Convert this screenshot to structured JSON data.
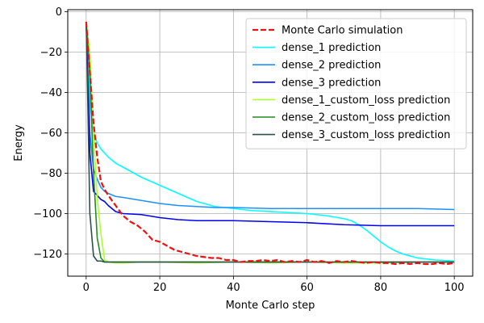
{
  "chart_data": {
    "type": "line",
    "title": "",
    "xlabel": "Monte Carlo step",
    "ylabel": "Energy",
    "xlim": [
      -5,
      105
    ],
    "ylim": [
      -131,
      1
    ],
    "xticks": [
      0,
      20,
      40,
      60,
      80,
      100
    ],
    "yticks": [
      0,
      -20,
      -40,
      -60,
      -80,
      -100,
      -120
    ],
    "grid": true,
    "legend_position": "top-right",
    "series": [
      {
        "name": "Monte Carlo simulation",
        "color": "#ee1111",
        "style": "dashed",
        "x": [
          0,
          1,
          2,
          3,
          4,
          5,
          6,
          8,
          10,
          12,
          14,
          16,
          18,
          20,
          22,
          24,
          26,
          28,
          30,
          32,
          34,
          36,
          38,
          40,
          42,
          44,
          46,
          48,
          50,
          52,
          54,
          56,
          58,
          60,
          62,
          64,
          66,
          68,
          70,
          72,
          74,
          76,
          78,
          80,
          82,
          84,
          86,
          88,
          90,
          92,
          94,
          96,
          98,
          100
        ],
        "y": [
          -5,
          -30,
          -55,
          -72,
          -84,
          -88,
          -91,
          -96,
          -101,
          -104,
          -106,
          -109,
          -113,
          -114,
          -116,
          -118,
          -119,
          -120,
          -121,
          -121.5,
          -122,
          -122,
          -123,
          -123,
          -124,
          -123.5,
          -123.5,
          -123,
          -123.5,
          -123,
          -124,
          -123.5,
          -124,
          -123,
          -124,
          -123.5,
          -124.5,
          -123.5,
          -124,
          -123.5,
          -124,
          -124.5,
          -124,
          -124.5,
          -124.5,
          -125,
          -124.5,
          -125,
          -124.5,
          -125,
          -125,
          -124.5,
          -125,
          -124.5
        ]
      },
      {
        "name": "dense_1 prediction",
        "color": "#00ffff",
        "style": "solid",
        "x": [
          0,
          1,
          2,
          3,
          4,
          6,
          8,
          10,
          15,
          20,
          25,
          30,
          35,
          40,
          45,
          50,
          55,
          60,
          65,
          70,
          72,
          74,
          76,
          78,
          80,
          82,
          84,
          86,
          88,
          90,
          95,
          100
        ],
        "y": [
          -5,
          -45,
          -60,
          -65,
          -68,
          -72,
          -75,
          -77,
          -82,
          -86,
          -90,
          -94,
          -96.5,
          -97.5,
          -98.5,
          -99,
          -99.5,
          -100,
          -101,
          -102.5,
          -103.5,
          -105.5,
          -108,
          -111,
          -114,
          -116.5,
          -118.5,
          -120,
          -121,
          -122,
          -123,
          -123.5
        ]
      },
      {
        "name": "dense_2 prediction",
        "color": "#1e90ff",
        "style": "solid",
        "x": [
          0,
          1,
          2,
          3,
          4,
          5,
          6,
          8,
          10,
          15,
          20,
          25,
          30,
          35,
          40,
          50,
          60,
          70,
          80,
          90,
          100
        ],
        "y": [
          -5,
          -60,
          -78,
          -83,
          -87,
          -89,
          -90,
          -91.5,
          -92,
          -93.5,
          -95,
          -96,
          -96.5,
          -97,
          -97,
          -97.5,
          -97.5,
          -97.5,
          -97.5,
          -97.5,
          -98
        ]
      },
      {
        "name": "dense_3 prediction",
        "color": "#0000ee",
        "style": "solid",
        "x": [
          0,
          1,
          2,
          3,
          4,
          5,
          6,
          8,
          10,
          15,
          20,
          25,
          30,
          35,
          40,
          50,
          60,
          70,
          80,
          90,
          100
        ],
        "y": [
          -5,
          -70,
          -89,
          -91,
          -93,
          -94,
          -96,
          -99,
          -100,
          -100.5,
          -102,
          -103,
          -103.5,
          -103.5,
          -103.5,
          -104,
          -104.5,
          -105.5,
          -106,
          -106,
          -106
        ]
      },
      {
        "name": "dense_1_custom_loss prediction",
        "color": "#adff2f",
        "style": "solid",
        "x": [
          0,
          1,
          2,
          3,
          4,
          5,
          6,
          8,
          10,
          15,
          20,
          30,
          40,
          50,
          60,
          70,
          80,
          90,
          100
        ],
        "y": [
          -5,
          -20,
          -60,
          -92,
          -110,
          -123,
          -124,
          -124.5,
          -124.5,
          -124,
          -124,
          -124.5,
          -124,
          -124.5,
          -124,
          -124.5,
          -124.5,
          -124,
          -124
        ]
      },
      {
        "name": "dense_2_custom_loss prediction",
        "color": "#228b22",
        "style": "solid",
        "x": [
          0,
          1,
          2,
          3,
          4,
          5,
          6,
          8,
          10,
          15,
          20,
          30,
          40,
          50,
          60,
          70,
          80,
          90,
          100
        ],
        "y": [
          -5,
          -30,
          -80,
          -112,
          -122,
          -124,
          -124,
          -124,
          -124,
          -124,
          -124,
          -124,
          -124,
          -124,
          -124,
          -124,
          -124,
          -124,
          -124
        ]
      },
      {
        "name": "dense_3_custom_loss prediction",
        "color": "#2f4f4f",
        "style": "solid",
        "x": [
          0,
          0.5,
          1,
          2,
          3,
          4,
          5,
          6,
          8,
          10,
          15,
          20,
          30,
          40,
          50,
          60,
          70,
          80,
          90,
          100
        ],
        "y": [
          -5,
          -50,
          -100,
          -121,
          -123.5,
          -123.5,
          -124,
          -124,
          -124,
          -124,
          -124,
          -124,
          -124,
          -124,
          -124,
          -124,
          -124,
          -124,
          -124,
          -124
        ]
      }
    ]
  }
}
